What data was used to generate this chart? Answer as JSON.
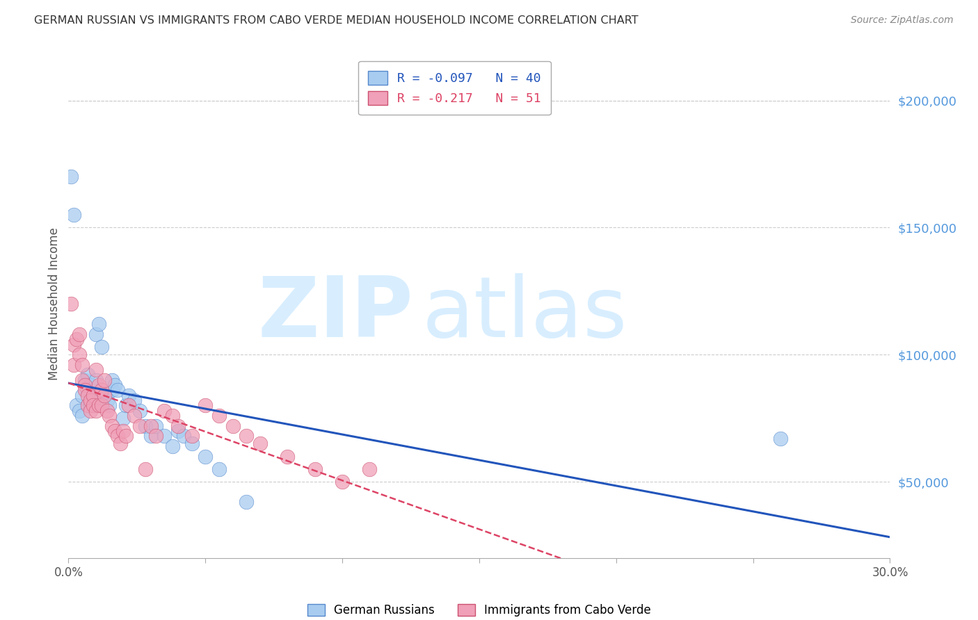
{
  "title": "GERMAN RUSSIAN VS IMMIGRANTS FROM CABO VERDE MEDIAN HOUSEHOLD INCOME CORRELATION CHART",
  "source": "Source: ZipAtlas.com",
  "ylabel": "Median Household Income",
  "xmin": 0.0,
  "xmax": 0.3,
  "ymin": 20000,
  "ymax": 220000,
  "yticks": [
    50000,
    100000,
    150000,
    200000
  ],
  "ytick_labels": [
    "$50,000",
    "$100,000",
    "$150,000",
    "$200,000"
  ],
  "watermark_line1": "ZIP",
  "watermark_line2": "atlas",
  "series": [
    {
      "name": "German Russians",
      "R": -0.097,
      "N": 40,
      "color": "#A8CCF0",
      "edge_color": "#5588CC",
      "line_color": "#2255BB",
      "line_style": "solid",
      "x": [
        0.001,
        0.002,
        0.003,
        0.004,
        0.005,
        0.005,
        0.006,
        0.007,
        0.007,
        0.008,
        0.008,
        0.009,
        0.01,
        0.01,
        0.011,
        0.012,
        0.013,
        0.014,
        0.015,
        0.016,
        0.016,
        0.017,
        0.018,
        0.02,
        0.021,
        0.022,
        0.024,
        0.026,
        0.028,
        0.03,
        0.032,
        0.035,
        0.038,
        0.04,
        0.042,
        0.045,
        0.05,
        0.055,
        0.065,
        0.26
      ],
      "y": [
        170000,
        155000,
        80000,
        78000,
        84000,
        76000,
        90000,
        92000,
        86000,
        88000,
        80000,
        82000,
        90000,
        108000,
        112000,
        103000,
        84000,
        82000,
        80000,
        86000,
        90000,
        88000,
        86000,
        75000,
        80000,
        84000,
        82000,
        78000,
        72000,
        68000,
        72000,
        68000,
        64000,
        70000,
        68000,
        65000,
        60000,
        55000,
        42000,
        67000
      ]
    },
    {
      "name": "Immigrants from Cabo Verde",
      "R": -0.217,
      "N": 51,
      "color": "#F0A0B8",
      "edge_color": "#CC5070",
      "line_color": "#DD4466",
      "line_style": "dashed",
      "x": [
        0.001,
        0.002,
        0.002,
        0.003,
        0.004,
        0.004,
        0.005,
        0.005,
        0.006,
        0.006,
        0.007,
        0.007,
        0.008,
        0.008,
        0.009,
        0.009,
        0.01,
        0.01,
        0.011,
        0.011,
        0.012,
        0.012,
        0.013,
        0.013,
        0.014,
        0.015,
        0.016,
        0.017,
        0.018,
        0.019,
        0.02,
        0.021,
        0.022,
        0.024,
        0.026,
        0.028,
        0.03,
        0.032,
        0.035,
        0.038,
        0.04,
        0.045,
        0.05,
        0.055,
        0.06,
        0.065,
        0.07,
        0.08,
        0.09,
        0.1,
        0.11
      ],
      "y": [
        120000,
        104000,
        96000,
        106000,
        108000,
        100000,
        96000,
        90000,
        88000,
        86000,
        84000,
        80000,
        82000,
        78000,
        84000,
        80000,
        78000,
        94000,
        88000,
        80000,
        86000,
        80000,
        84000,
        90000,
        78000,
        76000,
        72000,
        70000,
        68000,
        65000,
        70000,
        68000,
        80000,
        76000,
        72000,
        55000,
        72000,
        68000,
        78000,
        76000,
        72000,
        68000,
        80000,
        76000,
        72000,
        68000,
        65000,
        60000,
        55000,
        50000,
        55000
      ]
    }
  ],
  "bg_color": "#FFFFFF",
  "grid_color": "#CCCCCC",
  "title_color": "#333333",
  "right_label_color": "#5599DD",
  "watermark_color": "#D8EEFF",
  "axis_label_color": "#555555"
}
